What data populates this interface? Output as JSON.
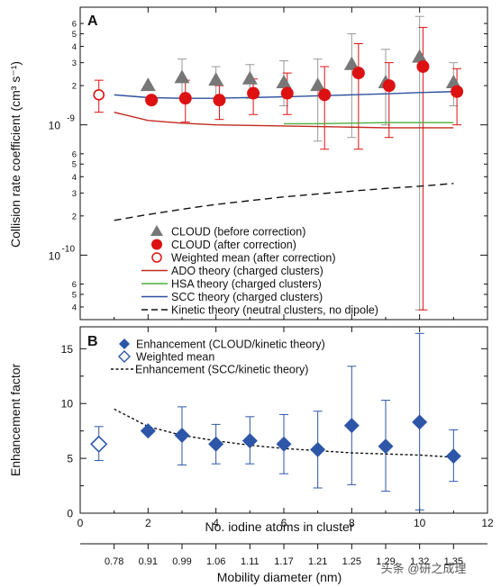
{
  "chart_data": [
    {
      "panel": "A",
      "type": "scatter",
      "xlabel": "",
      "ylabel": "Collision rate coefficient (cm³ s⁻¹)",
      "y_scale": "log",
      "xlim": [
        0,
        12
      ],
      "ylim": [
        3.2e-11,
        8e-09
      ],
      "y_tick_labels": {
        "major": [
          {
            "v": 1e-09,
            "label": "10",
            "exp": "-9"
          },
          {
            "v": 1e-10,
            "label": "10",
            "exp": "-10"
          }
        ],
        "minor": [
          {
            "v": 6e-09,
            "label": "6"
          },
          {
            "v": 5e-09,
            "label": "5"
          },
          {
            "v": 4e-09,
            "label": "4"
          },
          {
            "v": 3e-09,
            "label": "3"
          },
          {
            "v": 2e-09,
            "label": "2"
          },
          {
            "v": 6e-10,
            "label": "6"
          },
          {
            "v": 5e-10,
            "label": "5"
          },
          {
            "v": 4e-10,
            "label": "4"
          },
          {
            "v": 3e-10,
            "label": "3"
          },
          {
            "v": 2e-10,
            "label": "2"
          },
          {
            "v": 6e-11,
            "label": "6"
          },
          {
            "v": 5e-11,
            "label": "5"
          },
          {
            "v": 4e-11,
            "label": "4"
          }
        ]
      },
      "series": [
        {
          "name": "CLOUD (before correction)",
          "marker": "triangle",
          "color": "#777777",
          "error_color": "#999999",
          "points": [
            {
              "x": 2,
              "y": 2e-09
            },
            {
              "x": 3,
              "y": 2.3e-09,
              "lo": 1.6e-09,
              "hi": 3.2e-09
            },
            {
              "x": 4,
              "y": 2.2e-09,
              "lo": 1.6e-09,
              "hi": 2.8e-09
            },
            {
              "x": 5,
              "y": 2.25e-09,
              "lo": 1.6e-09,
              "hi": 2.9e-09
            },
            {
              "x": 6,
              "y": 2.1e-09,
              "lo": 1.4e-09,
              "hi": 3.1e-09
            },
            {
              "x": 7,
              "y": 2e-09,
              "lo": 7.5e-10,
              "hi": 3.2e-09
            },
            {
              "x": 8,
              "y": 2.9e-09,
              "lo": 8e-10,
              "hi": 5e-09
            },
            {
              "x": 9,
              "y": 2.1e-09,
              "lo": 1e-09,
              "hi": 3.8e-09
            },
            {
              "x": 10,
              "y": 3.3e-09,
              "lo": 3.8e-11,
              "hi": 6.8e-09
            },
            {
              "x": 11,
              "y": 2.1e-09,
              "lo": 1.4e-09,
              "hi": 3e-09
            }
          ]
        },
        {
          "name": "CLOUD (after correction)",
          "marker": "filled-circle",
          "color": "#dd1111",
          "points": [
            {
              "x": 2.1,
              "y": 1.55e-09
            },
            {
              "x": 3.1,
              "y": 1.6e-09,
              "lo": 1.05e-09,
              "hi": 2.2e-09
            },
            {
              "x": 4.1,
              "y": 1.55e-09,
              "lo": 1.1e-09,
              "hi": 2e-09
            },
            {
              "x": 5.1,
              "y": 1.75e-09,
              "lo": 1.2e-09,
              "hi": 2.25e-09
            },
            {
              "x": 6.1,
              "y": 1.75e-09,
              "lo": 1.2e-09,
              "hi": 2.5e-09
            },
            {
              "x": 7.2,
              "y": 1.7e-09,
              "lo": 6.5e-10,
              "hi": 2.8e-09
            },
            {
              "x": 8.2,
              "y": 2.5e-09,
              "lo": 6.5e-10,
              "hi": 4.2e-09
            },
            {
              "x": 9.1,
              "y": 2e-09,
              "lo": 8e-10,
              "hi": 3e-09
            },
            {
              "x": 10.1,
              "y": 2.8e-09,
              "lo": 3.8e-11,
              "hi": 5.6e-09
            },
            {
              "x": 11.1,
              "y": 1.8e-09,
              "lo": 1e-09,
              "hi": 2.7e-09
            }
          ]
        },
        {
          "name": "Weighted mean (after correction)",
          "marker": "open-circle",
          "color": "#dd1111",
          "points": [
            {
              "x": 0.55,
              "y": 1.7e-09,
              "lo": 1.25e-09,
              "hi": 2.2e-09
            }
          ]
        },
        {
          "name": "ADO theory (charged clusters)",
          "line": "solid",
          "color": "#c22a20",
          "x": [
            1,
            2,
            3,
            4,
            5,
            6,
            7,
            8,
            9,
            10,
            11
          ],
          "y": [
            1.25e-09,
            1.08e-09,
            1.03e-09,
            1e-09,
            9.9e-10,
            9.8e-10,
            9.7e-10,
            9.6e-10,
            9.5e-10,
            9.5e-10,
            9.5e-10
          ]
        },
        {
          "name": "HSA theory (charged clusters)",
          "line": "solid",
          "color": "#4caf3c",
          "x": [
            6,
            7,
            8,
            9,
            10,
            11
          ],
          "y": [
            1.02e-09,
            1.02e-09,
            1.03e-09,
            1.04e-09,
            1.04e-09,
            1.04e-09
          ]
        },
        {
          "name": "SCC theory (charged clusters)",
          "line": "solid",
          "color": "#2d4f9e",
          "x": [
            1,
            2,
            3,
            4,
            5,
            6,
            7,
            8,
            9,
            10,
            11
          ],
          "y": [
            1.7e-09,
            1.62e-09,
            1.6e-09,
            1.6e-09,
            1.62e-09,
            1.64e-09,
            1.67e-09,
            1.7e-09,
            1.73e-09,
            1.77e-09,
            1.8e-09
          ]
        },
        {
          "name": "Kinetic theory (neutral clusters, no dipole)",
          "line": "dashed",
          "color": "#111111",
          "x": [
            1,
            2,
            3,
            4,
            5,
            6,
            7,
            8,
            9,
            10,
            11
          ],
          "y": [
            1.85e-10,
            2.05e-10,
            2.25e-10,
            2.45e-10,
            2.62e-10,
            2.8e-10,
            2.95e-10,
            3.1e-10,
            3.25e-10,
            3.38e-10,
            3.55e-10
          ]
        }
      ]
    },
    {
      "panel": "B",
      "type": "scatter",
      "xlabel": "No. iodine atoms in cluster",
      "ylabel": "Enhancement factor",
      "xlim": [
        0,
        12
      ],
      "ylim": [
        0,
        17
      ],
      "x_ticks": [
        0,
        2,
        4,
        6,
        8,
        10,
        12
      ],
      "y_ticks": [
        0,
        5,
        10,
        15
      ],
      "series": [
        {
          "name": "Enhancement (CLOUD/kinetic theory)",
          "marker": "filled-diamond",
          "color": "#2d56a8",
          "points": [
            {
              "x": 2,
              "y": 7.5
            },
            {
              "x": 3,
              "y": 7.1,
              "lo": 4.4,
              "hi": 9.7
            },
            {
              "x": 4,
              "y": 6.3,
              "lo": 4.5,
              "hi": 8.1
            },
            {
              "x": 5,
              "y": 6.6,
              "lo": 4.5,
              "hi": 8.8
            },
            {
              "x": 6,
              "y": 6.3,
              "lo": 3.6,
              "hi": 9.0
            },
            {
              "x": 7,
              "y": 5.8,
              "lo": 2.3,
              "hi": 9.3
            },
            {
              "x": 8,
              "y": 8.0,
              "lo": 2.6,
              "hi": 13.4
            },
            {
              "x": 9,
              "y": 6.1,
              "lo": 2.0,
              "hi": 10.3
            },
            {
              "x": 10,
              "y": 8.3,
              "lo": 0.3,
              "hi": 16.4
            },
            {
              "x": 11,
              "y": 5.2,
              "lo": 2.9,
              "hi": 7.6
            }
          ]
        },
        {
          "name": "Weighted mean",
          "marker": "open-diamond",
          "color": "#2d56a8",
          "points": [
            {
              "x": 0.55,
              "y": 6.3,
              "lo": 4.8,
              "hi": 7.9
            }
          ]
        },
        {
          "name": "Enhancement (SCC/kinetic theory)",
          "line": "dotted",
          "color": "#111111",
          "x": [
            1,
            2,
            3,
            4,
            5,
            6,
            7,
            8,
            9,
            10,
            11
          ],
          "y": [
            9.5,
            7.9,
            7.1,
            6.6,
            6.2,
            5.9,
            5.7,
            5.5,
            5.4,
            5.3,
            5.1
          ]
        }
      ]
    }
  ],
  "secondary_axis": {
    "label": "Mobility diameter (nm)",
    "ticks": [
      {
        "x": 1,
        "label": "0.78"
      },
      {
        "x": 2,
        "label": "0.91"
      },
      {
        "x": 3,
        "label": "0.99"
      },
      {
        "x": 4,
        "label": "1.06"
      },
      {
        "x": 5,
        "label": "1.11"
      },
      {
        "x": 6,
        "label": "1.17"
      },
      {
        "x": 7,
        "label": "1.21"
      },
      {
        "x": 8,
        "label": "1.25"
      },
      {
        "x": 9,
        "label": "1.29"
      },
      {
        "x": 10,
        "label": "1.32"
      },
      {
        "x": 11,
        "label": "1.35"
      }
    ]
  },
  "watermark": "头条 @研之成理"
}
